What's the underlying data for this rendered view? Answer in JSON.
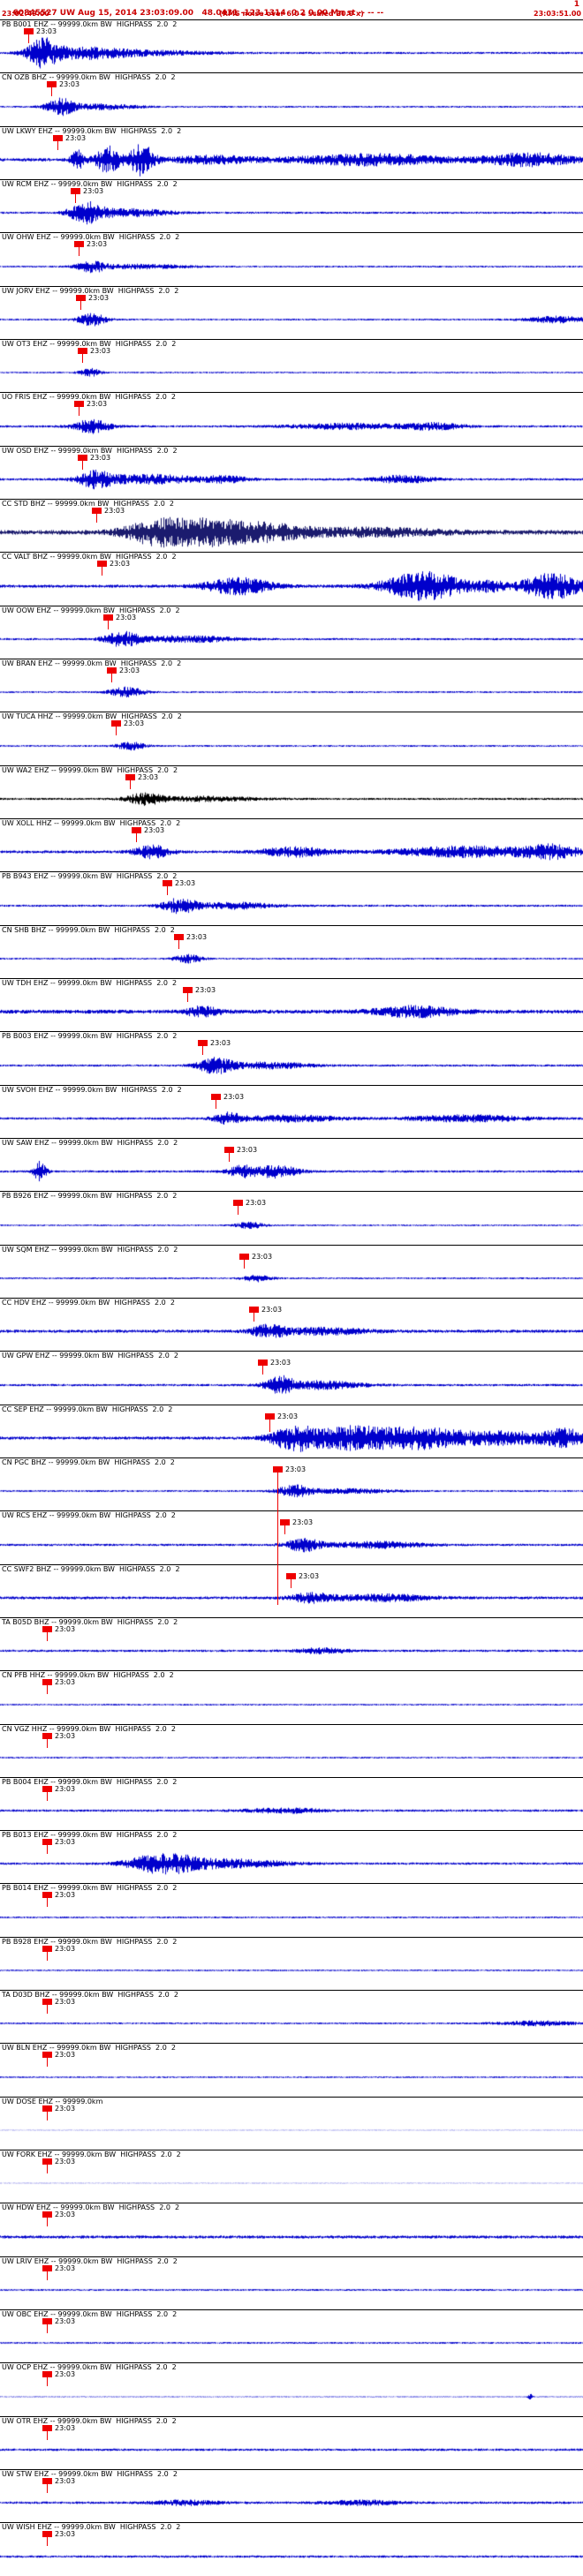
{
  "header": {
    "line1": "60845527 UW Aug 15, 2014 23:03:09.00   48.0431 -123.1314  0.2 0.00 Mn st -- -- --",
    "line1_right": "1",
    "start_time": "23:02:49.00",
    "center_note": "(RMS noise over 6.0 s scaled 20.0 x)",
    "end_time": "23:03:51.00"
  },
  "time_tick_label": "23:03",
  "colors": {
    "header_text": "#cc0000",
    "pick_red": "#ee0000",
    "trace_blue": "#0000cc",
    "trace_dark": "#1b1b6e",
    "trace_black": "#000000",
    "divider": "#000000"
  },
  "traces": [
    {
      "label": "PB B001 EHZ -- 99999.0km BW  HIGHPASS  2.0  2",
      "pick": 27,
      "color": "blue",
      "base": 1.2,
      "bursts": [
        [
          48,
          18,
          15
        ],
        [
          95,
          45,
          6
        ],
        [
          170,
          70,
          2.5
        ]
      ]
    },
    {
      "label": "CN OZB BHZ -- 99999.0km BW  HIGHPASS  2.0  2",
      "pick": 53,
      "color": "blue",
      "base": 1.0,
      "bursts": [
        [
          68,
          16,
          9
        ],
        [
          115,
          40,
          3
        ]
      ]
    },
    {
      "label": "UW LKWY EHZ -- 99999.0km BW  HIGHPASS  2.0  2",
      "pick": 60,
      "color": "blue",
      "base": 1.8,
      "bursts": [
        [
          88,
          8,
          10
        ],
        [
          122,
          14,
          15
        ],
        [
          160,
          14,
          17
        ],
        [
          240,
          50,
          4
        ],
        [
          420,
          90,
          6
        ],
        [
          600,
          50,
          7
        ]
      ]
    },
    {
      "label": "UW RCM EHZ -- 99999.0km BW  HIGHPASS  2.0  2",
      "pick": 80,
      "color": "blue",
      "base": 1.2,
      "bursts": [
        [
          98,
          20,
          11
        ],
        [
          150,
          45,
          4
        ]
      ]
    },
    {
      "label": "UW OHW EHZ -- 99999.0km BW  HIGHPASS  2.0  2",
      "pick": 84,
      "color": "blue",
      "base": 1.0,
      "bursts": [
        [
          103,
          16,
          6
        ],
        [
          160,
          50,
          2.5
        ]
      ]
    },
    {
      "label": "UW JORV EHZ -- 99999.0km BW  HIGHPASS  2.0  2",
      "pick": 86,
      "color": "blue",
      "base": 1.0,
      "bursts": [
        [
          104,
          16,
          7
        ],
        [
          630,
          35,
          3.5
        ]
      ]
    },
    {
      "label": "UW OT3 EHZ -- 99999.0km BW  HIGHPASS  2.0  2",
      "pick": 88,
      "color": "blue",
      "base": 0.9,
      "bursts": [
        [
          102,
          12,
          4.5
        ]
      ]
    },
    {
      "label": "UO FRIS EHZ -- 99999.0km BW  HIGHPASS  2.0  2",
      "pick": 84,
      "color": "blue",
      "base": 1.3,
      "bursts": [
        [
          103,
          20,
          8
        ],
        [
          390,
          60,
          3
        ],
        [
          490,
          35,
          3.5
        ]
      ]
    },
    {
      "label": "UW OSD EHZ -- 99999.0km BW  HIGHPASS  2.0  2",
      "pick": 88,
      "color": "blue",
      "base": 1.3,
      "bursts": [
        [
          108,
          20,
          9
        ],
        [
          170,
          55,
          5
        ],
        [
          255,
          25,
          3.5
        ],
        [
          455,
          35,
          4
        ]
      ]
    },
    {
      "label": "CC STD BHZ -- 99999.0km BW  HIGHPASS  2.0  2",
      "pick": 104,
      "color": "dark",
      "base": 2.6,
      "bursts": [
        [
          175,
          35,
          12
        ],
        [
          235,
          45,
          13
        ],
        [
          305,
          45,
          8
        ],
        [
          420,
          80,
          4
        ]
      ]
    },
    {
      "label": "CC VALT BHZ -- 99999.0km BW  HIGHPASS  2.0  2",
      "pick": 110,
      "color": "blue",
      "base": 1.7,
      "bursts": [
        [
          270,
          38,
          9
        ],
        [
          480,
          45,
          16
        ],
        [
          555,
          18,
          5
        ],
        [
          625,
          35,
          14
        ]
      ]
    },
    {
      "label": "UW OOW EHZ -- 99999.0km BW  HIGHPASS  2.0  2",
      "pick": 117,
      "color": "blue",
      "base": 1.2,
      "bursts": [
        [
          138,
          20,
          8
        ],
        [
          210,
          55,
          3.5
        ]
      ]
    },
    {
      "label": "UW BRAN EHZ -- 99999.0km BW  HIGHPASS  2.0  2",
      "pick": 121,
      "color": "blue",
      "base": 1.0,
      "bursts": [
        [
          143,
          20,
          5.5
        ]
      ]
    },
    {
      "label": "UW TUCA HHZ -- 99999.0km BW  HIGHPASS  2.0  2",
      "pick": 126,
      "color": "blue",
      "base": 1.0,
      "bursts": [
        [
          148,
          16,
          4.5
        ]
      ]
    },
    {
      "label": "UW WA2 EHZ -- 99999.0km BW  HIGHPASS  2.0  2",
      "pick": 142,
      "color": "black",
      "base": 1.2,
      "bursts": [
        [
          163,
          20,
          6
        ],
        [
          230,
          60,
          2.5
        ]
      ]
    },
    {
      "label": "UW XOLL HHZ -- 99999.0km BW  HIGHPASS  2.0  2",
      "pick": 149,
      "color": "blue",
      "base": 1.6,
      "bursts": [
        [
          172,
          20,
          7
        ],
        [
          335,
          40,
          5
        ],
        [
          530,
          80,
          6
        ],
        [
          625,
          30,
          7
        ]
      ]
    },
    {
      "label": "PB B943 EHZ -- 99999.0km BW  HIGHPASS  2.0  2",
      "pick": 184,
      "color": "blue",
      "base": 1.2,
      "bursts": [
        [
          203,
          20,
          8
        ],
        [
          265,
          45,
          3.5
        ]
      ]
    },
    {
      "label": "CN SHB BHZ -- 99999.0km BW  HIGHPASS  2.0  2",
      "pick": 197,
      "color": "blue",
      "base": 1.0,
      "bursts": [
        [
          213,
          16,
          4.5
        ]
      ]
    },
    {
      "label": "UW TDH EHZ -- 99999.0km BW  HIGHPASS  2.0  2",
      "pick": 207,
      "color": "blue",
      "base": 2.2,
      "bursts": [
        [
          228,
          20,
          5
        ],
        [
          470,
          45,
          5.5
        ]
      ]
    },
    {
      "label": "PB B003 EHZ -- 99999.0km BW  HIGHPASS  2.0  2",
      "pick": 224,
      "color": "blue",
      "base": 1.2,
      "bursts": [
        [
          243,
          20,
          9
        ],
        [
          305,
          45,
          3.5
        ]
      ]
    },
    {
      "label": "UW SVOH EHZ -- 99999.0km BW  HIGHPASS  2.0  2",
      "pick": 239,
      "color": "blue",
      "base": 1.3,
      "bursts": [
        [
          258,
          16,
          6
        ],
        [
          330,
          55,
          3.5
        ],
        [
          530,
          70,
          3.5
        ]
      ]
    },
    {
      "label": "UW SAW EHZ -- 99999.0km BW  HIGHPASS  2.0  2",
      "pick": 254,
      "color": "blue",
      "base": 1.3,
      "bursts": [
        [
          45,
          7,
          11
        ],
        [
          273,
          16,
          6
        ],
        [
          312,
          25,
          7
        ]
      ]
    },
    {
      "label": "PB B926 EHZ -- 99999.0km BW  HIGHPASS  2.0  2",
      "pick": 264,
      "color": "blue",
      "base": 0.9,
      "bursts": [
        [
          283,
          16,
          3.5
        ]
      ]
    },
    {
      "label": "UW SQM EHZ -- 99999.0km BW  HIGHPASS  2.0  2",
      "pick": 271,
      "color": "blue",
      "base": 1.0,
      "bursts": [
        [
          291,
          16,
          3.5
        ]
      ]
    },
    {
      "label": "CC HDV EHZ -- 99999.0km BW  HIGHPASS  2.0  2",
      "pick": 282,
      "color": "blue",
      "base": 1.7,
      "bursts": [
        [
          303,
          20,
          6
        ],
        [
          365,
          55,
          3.5
        ]
      ]
    },
    {
      "label": "UW GPW EHZ -- 99999.0km BW  HIGHPASS  2.0  2",
      "pick": 292,
      "color": "blue",
      "base": 1.3,
      "bursts": [
        [
          316,
          16,
          9
        ],
        [
          365,
          45,
          4.5
        ]
      ]
    },
    {
      "label": "CC SEP EHZ -- 99999.0km BW  HIGHPASS  2.0  2",
      "pick": 300,
      "color": "blue",
      "base": 1.7,
      "bursts": [
        [
          330,
          25,
          12
        ],
        [
          395,
          50,
          13
        ],
        [
          475,
          45,
          10
        ],
        [
          570,
          70,
          7
        ],
        [
          640,
          20,
          8
        ]
      ],
      "line": 14
    },
    {
      "label": "CN PGC BHZ -- 99999.0km BW  HIGHPASS  2.0  2",
      "pick": 309,
      "color": "blue",
      "base": 1.0,
      "bursts": [
        [
          333,
          20,
          6
        ],
        [
          395,
          50,
          2.5
        ]
      ],
      "line": 150
    },
    {
      "label": "UW RCS EHZ -- 99999.0km BW  HIGHPASS  2.0  2",
      "pick": 317,
      "color": "blue",
      "base": 1.3,
      "bursts": [
        [
          343,
          20,
          7
        ],
        [
          425,
          55,
          3.5
        ]
      ]
    },
    {
      "label": "CC SWF2 BHZ -- 99999.0km BW  HIGHPASS  2.0  2",
      "pick": 324,
      "color": "blue",
      "base": 1.6,
      "bursts": [
        [
          353,
          25,
          5
        ],
        [
          435,
          55,
          3.5
        ]
      ]
    },
    {
      "label": "TA B05D BHZ -- 99999.0km BW  HIGHPASS  2.0  2",
      "pick": 48,
      "color": "blue",
      "base": 1.3,
      "bursts": [
        [
          365,
          30,
          3
        ]
      ]
    },
    {
      "label": "CN PFB HHZ -- 99999.0km BW  HIGHPASS  2.0  2",
      "pick": 48,
      "color": "blue",
      "base": 0.9,
      "bursts": []
    },
    {
      "label": "CN VGZ HHZ -- 99999.0km BW  HIGHPASS  2.0  2",
      "pick": 48,
      "color": "blue",
      "base": 0.9,
      "bursts": []
    },
    {
      "label": "PB B004 EHZ -- 99999.0km BW  HIGHPASS  2.0  2",
      "pick": 48,
      "color": "blue",
      "base": 1.3,
      "bursts": [
        [
          320,
          45,
          2.5
        ]
      ]
    },
    {
      "label": "PB B013 EHZ -- 99999.0km BW  HIGHPASS  2.0  2",
      "pick": 48,
      "color": "blue",
      "base": 1.3,
      "bursts": [
        [
          185,
          40,
          11
        ],
        [
          265,
          60,
          4.5
        ]
      ]
    },
    {
      "label": "PB B014 EHZ -- 99999.0km BW  HIGHPASS  2.0  2",
      "pick": 48,
      "color": "blue",
      "base": 1.0,
      "bursts": []
    },
    {
      "label": "PB B928 EHZ -- 99999.0km BW  HIGHPASS  2.0  2",
      "pick": 48,
      "color": "blue",
      "base": 0.9,
      "bursts": []
    },
    {
      "label": "TA D03D BHZ -- 99999.0km BW  HIGHPASS  2.0  2",
      "pick": 48,
      "color": "blue",
      "base": 1.0,
      "bursts": [
        [
          610,
          45,
          2.5
        ]
      ]
    },
    {
      "label": "UW BLN EHZ -- 99999.0km BW  HIGHPASS  2.0  2",
      "pick": 48,
      "color": "blue",
      "base": 0.9,
      "bursts": []
    },
    {
      "label": "UW DOSE EHZ -- 99999.0km",
      "pick": 48,
      "color": "blue",
      "base": 0.25,
      "bursts": []
    },
    {
      "label": "UW FORK EHZ -- 99999.0km BW  HIGHPASS  2.0  2",
      "pick": 48,
      "color": "blue",
      "base": 0.25,
      "bursts": []
    },
    {
      "label": "UW HDW EHZ -- 99999.0km BW  HIGHPASS  2.0  2",
      "pick": 48,
      "color": "blue",
      "base": 1.7,
      "bursts": []
    },
    {
      "label": "UW LRIV EHZ -- 99999.0km BW  HIGHPASS  2.0  2",
      "pick": 48,
      "color": "blue",
      "base": 1.0,
      "bursts": []
    },
    {
      "label": "UW OBC EHZ -- 99999.0km BW  HIGHPASS  2.0  2",
      "pick": 48,
      "color": "blue",
      "base": 1.0,
      "bursts": []
    },
    {
      "label": "UW OCP EHZ -- 99999.0km BW  HIGHPASS  2.0  2",
      "pick": 48,
      "color": "blue",
      "base": 0.5,
      "bursts": [
        [
          600,
          3,
          3
        ]
      ]
    },
    {
      "label": "UW OTR EHZ -- 99999.0km BW  HIGHPASS  2.0  2",
      "pick": 48,
      "color": "blue",
      "base": 1.3,
      "bursts": []
    },
    {
      "label": "UW STW EHZ -- 99999.0km BW  HIGHPASS  2.0  2",
      "pick": 48,
      "color": "blue",
      "base": 1.4,
      "bursts": [
        [
          210,
          40,
          2.5
        ],
        [
          410,
          40,
          2.5
        ]
      ]
    },
    {
      "label": "UW WISH EHZ -- 99999.0km BW  HIGHPASS  2.0  2",
      "pick": 48,
      "color": "blue",
      "base": 1.3,
      "bursts": []
    }
  ]
}
